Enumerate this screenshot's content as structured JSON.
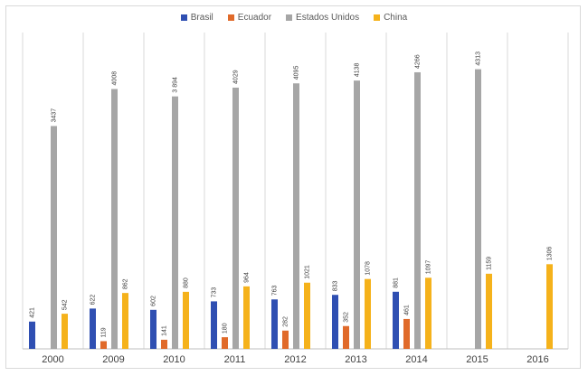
{
  "chart_data": {
    "type": "bar",
    "categories": [
      "2000",
      "2009",
      "2010",
      "2011",
      "2012",
      "2013",
      "2014",
      "2015",
      "2016"
    ],
    "series": [
      {
        "name": "Brasil",
        "color": "#2f4fb2",
        "values": [
          421,
          622,
          602,
          733,
          763,
          833,
          881,
          null,
          null
        ]
      },
      {
        "name": "Ecuador",
        "color": "#e06a2a",
        "values": [
          null,
          119,
          141,
          180,
          282,
          352,
          461,
          null,
          null
        ]
      },
      {
        "name": "Estados Unidos",
        "color": "#a6a6a6",
        "values": [
          3437,
          4008,
          3894,
          4029,
          4095,
          4138,
          4266,
          4313,
          null
        ]
      },
      {
        "name": "China",
        "color": "#f5b21b",
        "values": [
          542,
          862,
          880,
          964,
          1021,
          1078,
          1097,
          1159,
          1306
        ]
      }
    ],
    "data_labels": [
      [
        "421",
        "622",
        "602",
        "733",
        "763",
        "833",
        "881",
        "",
        ""
      ],
      [
        "",
        "119",
        "141",
        "180",
        "282",
        "352",
        "461",
        "",
        ""
      ],
      [
        "3437",
        "4008",
        "3 894",
        "4029",
        "4095",
        "4138",
        "4266",
        "4313",
        ""
      ],
      [
        "542",
        "862",
        "880",
        "964",
        "1021",
        "1078",
        "1097",
        "1159",
        "1306"
      ]
    ],
    "ylim": [
      0,
      4600
    ],
    "legend_position": "top-center",
    "grid": true
  }
}
